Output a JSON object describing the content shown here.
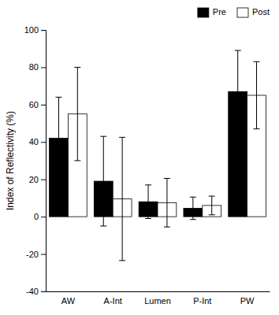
{
  "chart_data": {
    "type": "bar",
    "ylabel": "Index of Reflectivity (%)",
    "categories": [
      "AW",
      "A-Int",
      "Lumen",
      "P-Int",
      "PW"
    ],
    "series": [
      {
        "name": "Pre",
        "color": "#000000",
        "values": [
          42,
          19,
          8,
          4.5,
          67
        ],
        "errors": [
          22,
          24,
          9,
          6,
          22
        ]
      },
      {
        "name": "Post",
        "color": "#ffffff",
        "values": [
          55,
          9.5,
          7.5,
          6,
          65
        ],
        "errors": [
          25,
          33,
          13,
          5,
          18
        ]
      }
    ],
    "ylim": [
      -40,
      100
    ],
    "yticks": [
      -40,
      -20,
      0,
      20,
      40,
      60,
      80,
      100
    ],
    "legend": "upper right"
  }
}
